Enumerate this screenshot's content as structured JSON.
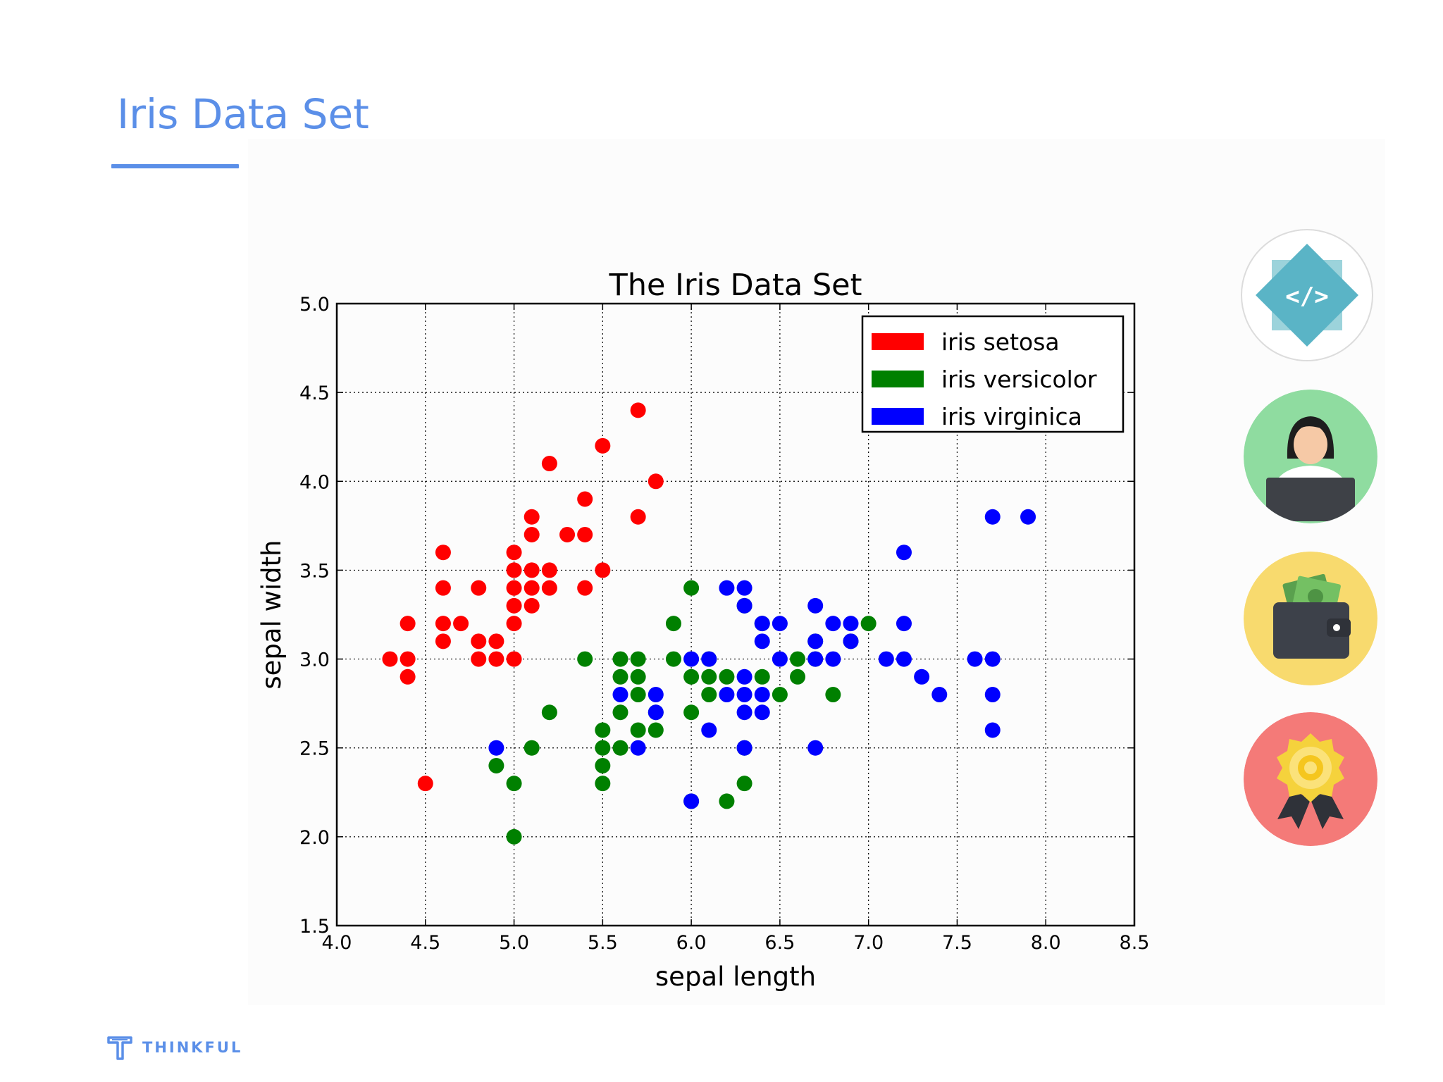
{
  "page": {
    "title": "Iris Data Set",
    "accent_color": "#5b8fe8"
  },
  "brand": {
    "name": "THINKFUL",
    "logo_icon": "thinkful-logo-icon"
  },
  "side_icons": [
    {
      "icon": "code-icon",
      "background": "#ffffff"
    },
    {
      "icon": "person-laptop-icon",
      "background": "#8fdca0"
    },
    {
      "icon": "wallet-money-icon",
      "background": "#f8da6e"
    },
    {
      "icon": "award-badge-icon",
      "background": "#f47a78"
    }
  ],
  "chart_data": {
    "type": "scatter",
    "title": "The Iris Data Set",
    "xlabel": "sepal length",
    "ylabel": "sepal width",
    "xlim": [
      4.0,
      8.5
    ],
    "ylim": [
      1.5,
      5.0
    ],
    "xticks": [
      "4.0",
      "4.5",
      "5.0",
      "5.5",
      "6.0",
      "6.5",
      "7.0",
      "7.5",
      "8.0",
      "8.5"
    ],
    "yticks": [
      "1.5",
      "2.0",
      "2.5",
      "3.0",
      "3.5",
      "4.0",
      "4.5",
      "5.0"
    ],
    "grid": true,
    "legend_position": "top-right",
    "series": [
      {
        "name": "iris setosa",
        "color": "#ff0000",
        "points": [
          [
            4.3,
            3.0
          ],
          [
            4.4,
            3.0
          ],
          [
            4.4,
            2.9
          ],
          [
            4.4,
            3.2
          ],
          [
            4.5,
            2.3
          ],
          [
            4.6,
            3.1
          ],
          [
            4.6,
            3.2
          ],
          [
            4.6,
            3.4
          ],
          [
            4.6,
            3.6
          ],
          [
            4.7,
            3.2
          ],
          [
            4.8,
            3.0
          ],
          [
            4.8,
            3.1
          ],
          [
            4.8,
            3.4
          ],
          [
            4.9,
            3.0
          ],
          [
            4.9,
            3.1
          ],
          [
            5.0,
            3.0
          ],
          [
            5.0,
            3.2
          ],
          [
            5.0,
            3.3
          ],
          [
            5.0,
            3.4
          ],
          [
            5.0,
            3.5
          ],
          [
            5.0,
            3.6
          ],
          [
            5.1,
            3.3
          ],
          [
            5.1,
            3.4
          ],
          [
            5.1,
            3.5
          ],
          [
            5.1,
            3.7
          ],
          [
            5.1,
            3.8
          ],
          [
            5.2,
            3.4
          ],
          [
            5.2,
            3.5
          ],
          [
            5.2,
            4.1
          ],
          [
            5.3,
            3.7
          ],
          [
            5.4,
            3.4
          ],
          [
            5.4,
            3.7
          ],
          [
            5.4,
            3.9
          ],
          [
            5.5,
            3.5
          ],
          [
            5.5,
            4.2
          ],
          [
            5.7,
            3.8
          ],
          [
            5.7,
            4.4
          ],
          [
            5.8,
            4.0
          ]
        ]
      },
      {
        "name": "iris versicolor",
        "color": "#008000",
        "points": [
          [
            4.9,
            2.4
          ],
          [
            5.0,
            2.0
          ],
          [
            5.0,
            2.3
          ],
          [
            5.1,
            2.5
          ],
          [
            5.2,
            2.7
          ],
          [
            5.4,
            3.0
          ],
          [
            5.5,
            2.3
          ],
          [
            5.5,
            2.4
          ],
          [
            5.5,
            2.5
          ],
          [
            5.5,
            2.6
          ],
          [
            5.6,
            2.5
          ],
          [
            5.6,
            2.7
          ],
          [
            5.6,
            2.9
          ],
          [
            5.6,
            3.0
          ],
          [
            5.7,
            2.6
          ],
          [
            5.7,
            2.8
          ],
          [
            5.7,
            2.9
          ],
          [
            5.7,
            3.0
          ],
          [
            5.8,
            2.6
          ],
          [
            5.8,
            2.7
          ],
          [
            5.9,
            3.0
          ],
          [
            5.9,
            3.2
          ],
          [
            6.0,
            2.2
          ],
          [
            6.0,
            2.7
          ],
          [
            6.0,
            2.9
          ],
          [
            6.0,
            3.4
          ],
          [
            6.1,
            2.8
          ],
          [
            6.1,
            2.9
          ],
          [
            6.1,
            3.0
          ],
          [
            6.2,
            2.2
          ],
          [
            6.2,
            2.9
          ],
          [
            6.3,
            2.3
          ],
          [
            6.3,
            2.5
          ],
          [
            6.3,
            3.3
          ],
          [
            6.4,
            2.9
          ],
          [
            6.4,
            3.2
          ],
          [
            6.5,
            2.8
          ],
          [
            6.6,
            2.9
          ],
          [
            6.6,
            3.0
          ],
          [
            6.7,
            3.0
          ],
          [
            6.7,
            3.1
          ],
          [
            6.8,
            2.8
          ],
          [
            6.9,
            3.1
          ],
          [
            7.0,
            3.2
          ]
        ]
      },
      {
        "name": "iris virginica",
        "color": "#0000ff",
        "points": [
          [
            4.9,
            2.5
          ],
          [
            5.6,
            2.8
          ],
          [
            5.7,
            2.5
          ],
          [
            5.8,
            2.7
          ],
          [
            5.8,
            2.8
          ],
          [
            6.0,
            2.2
          ],
          [
            6.0,
            3.0
          ],
          [
            6.1,
            2.6
          ],
          [
            6.1,
            3.0
          ],
          [
            6.2,
            2.8
          ],
          [
            6.2,
            3.4
          ],
          [
            6.3,
            2.5
          ],
          [
            6.3,
            2.7
          ],
          [
            6.3,
            2.8
          ],
          [
            6.3,
            2.9
          ],
          [
            6.3,
            3.3
          ],
          [
            6.3,
            3.4
          ],
          [
            6.4,
            2.7
          ],
          [
            6.4,
            2.8
          ],
          [
            6.4,
            3.1
          ],
          [
            6.4,
            3.2
          ],
          [
            6.5,
            3.0
          ],
          [
            6.5,
            3.2
          ],
          [
            6.7,
            2.5
          ],
          [
            6.7,
            3.0
          ],
          [
            6.7,
            3.1
          ],
          [
            6.7,
            3.3
          ],
          [
            6.8,
            3.0
          ],
          [
            6.8,
            3.2
          ],
          [
            6.9,
            3.1
          ],
          [
            6.9,
            3.2
          ],
          [
            7.1,
            3.0
          ],
          [
            7.2,
            3.0
          ],
          [
            7.2,
            3.2
          ],
          [
            7.2,
            3.6
          ],
          [
            7.3,
            2.9
          ],
          [
            7.4,
            2.8
          ],
          [
            7.6,
            3.0
          ],
          [
            7.7,
            2.6
          ],
          [
            7.7,
            2.8
          ],
          [
            7.7,
            3.0
          ],
          [
            7.7,
            3.8
          ],
          [
            7.9,
            3.8
          ]
        ]
      }
    ]
  }
}
